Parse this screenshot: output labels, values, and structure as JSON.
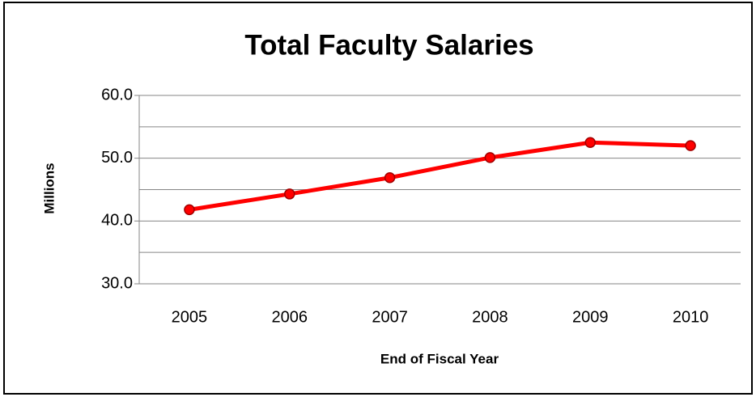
{
  "chart_data": {
    "type": "line",
    "title": "Total Faculty Salaries",
    "xlabel": "End of Fiscal Year",
    "ylabel": "Millions",
    "categories": [
      "2005",
      "2006",
      "2007",
      "2008",
      "2009",
      "2010"
    ],
    "series": [
      {
        "name": "Total Faculty Salaries",
        "color": "#ff0000",
        "values": [
          41.8,
          44.3,
          46.9,
          50.1,
          52.5,
          52.0
        ]
      }
    ],
    "ylim": [
      30,
      60
    ],
    "yticks": [
      {
        "value": 30,
        "label": "30.0"
      },
      {
        "value": 40,
        "label": "40.0"
      },
      {
        "value": 50,
        "label": "50.0"
      },
      {
        "value": 60,
        "label": "60.0"
      }
    ],
    "minor_yticks": [
      35,
      45,
      55
    ],
    "grid": true
  }
}
